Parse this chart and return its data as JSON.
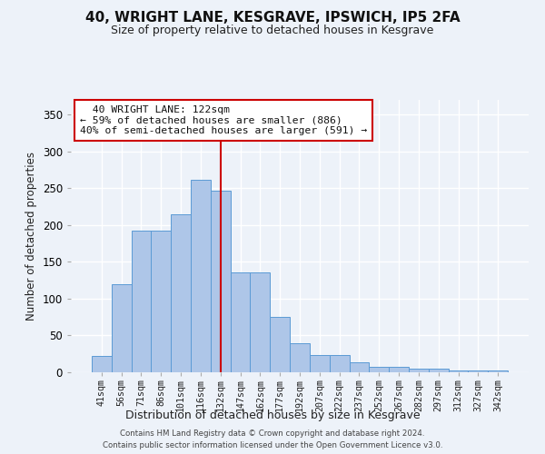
{
  "title": "40, WRIGHT LANE, KESGRAVE, IPSWICH, IP5 2FA",
  "subtitle": "Size of property relative to detached houses in Kesgrave",
  "xlabel": "Distribution of detached houses by size in Kesgrave",
  "ylabel": "Number of detached properties",
  "categories": [
    "41sqm",
    "56sqm",
    "71sqm",
    "86sqm",
    "101sqm",
    "116sqm",
    "132sqm",
    "147sqm",
    "162sqm",
    "177sqm",
    "192sqm",
    "207sqm",
    "222sqm",
    "237sqm",
    "252sqm",
    "267sqm",
    "282sqm",
    "297sqm",
    "312sqm",
    "327sqm",
    "342sqm"
  ],
  "values": [
    22,
    120,
    193,
    193,
    215,
    262,
    247,
    136,
    136,
    75,
    40,
    23,
    23,
    13,
    7,
    7,
    5,
    5,
    3,
    3,
    2
  ],
  "bar_color": "#aec6e8",
  "bar_edgecolor": "#5b9bd5",
  "vline_x": 6.0,
  "vline_color": "#cc0000",
  "annotation_text": "  40 WRIGHT LANE: 122sqm  \n← 59% of detached houses are smaller (886)\n40% of semi-detached houses are larger (591) →",
  "annotation_box_color": "#ffffff",
  "annotation_box_edgecolor": "#cc0000",
  "background_color": "#edf2f9",
  "plot_bg_color": "#edf2f9",
  "grid_color": "#ffffff",
  "footer": "Contains HM Land Registry data © Crown copyright and database right 2024.\nContains public sector information licensed under the Open Government Licence v3.0.",
  "ylim": [
    0,
    370
  ],
  "yticks": [
    0,
    50,
    100,
    150,
    200,
    250,
    300,
    350
  ]
}
